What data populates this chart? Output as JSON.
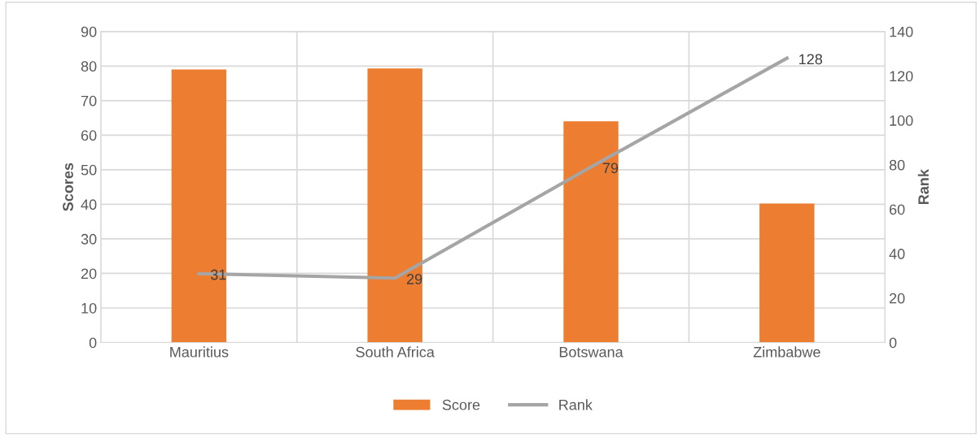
{
  "chart_data": {
    "type": "bar",
    "ylabel": "Scores",
    "y2label": "Rank",
    "categories": [
      "Mauritius",
      "South Africa",
      "Botswana",
      "Zimbabwe"
    ],
    "series": [
      {
        "name": "Score",
        "color": "#ed7d31",
        "values": [
          79.0,
          79.3,
          64.0,
          40.2
        ]
      },
      {
        "name": "Rank",
        "type": "line",
        "axis": "y2",
        "color": "#a5a5a5",
        "values": [
          31,
          29,
          79,
          128
        ],
        "data_labels": true
      }
    ],
    "ylim": [
      0,
      90
    ],
    "yticks": [
      0,
      10,
      20,
      30,
      40,
      50,
      60,
      70,
      80,
      90
    ],
    "y2lim": [
      0,
      140
    ],
    "y2ticks": [
      0,
      20,
      40,
      60,
      80,
      100,
      120,
      140
    ],
    "grid": true,
    "legend": "bottom",
    "marker": "none"
  }
}
